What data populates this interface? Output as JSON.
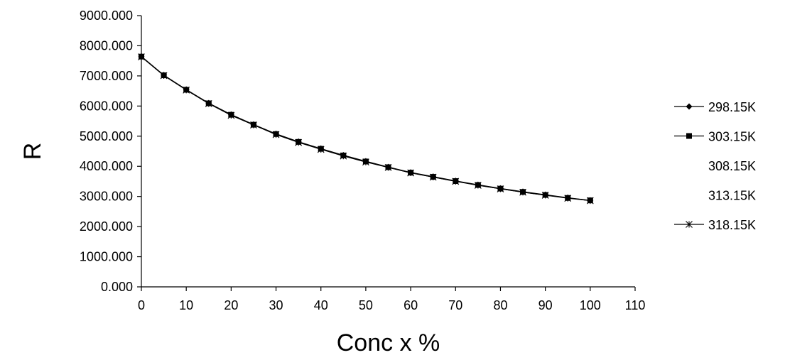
{
  "chart_data": {
    "type": "line",
    "title": "",
    "xlabel": "Conc x %",
    "ylabel": "R",
    "xlim": [
      0,
      110
    ],
    "ylim": [
      0,
      9000
    ],
    "x_ticks": [
      "0",
      "10",
      "20",
      "30",
      "40",
      "50",
      "60",
      "70",
      "80",
      "90",
      "100",
      "110"
    ],
    "y_ticks": [
      "0.000",
      "1000.000",
      "2000.000",
      "3000.000",
      "4000.000",
      "5000.000",
      "6000.000",
      "7000.000",
      "8000.000",
      "9000.000"
    ],
    "grid": false,
    "legend_position": "right",
    "x": [
      0,
      5,
      10,
      15,
      20,
      25,
      30,
      35,
      40,
      45,
      50,
      55,
      60,
      65,
      70,
      75,
      80,
      85,
      90,
      95,
      100
    ],
    "series": [
      {
        "name": "298.15K",
        "marker": "diamond",
        "values": [
          7650,
          7030,
          6550,
          6100,
          5720,
          5390,
          5080,
          4820,
          4590,
          4370,
          4170,
          3980,
          3800,
          3660,
          3520,
          3390,
          3270,
          3160,
          3060,
          2960,
          2870
        ]
      },
      {
        "name": "303.15K",
        "marker": "square",
        "values": [
          7640,
          7020,
          6540,
          6090,
          5710,
          5380,
          5070,
          4810,
          4580,
          4360,
          4160,
          3970,
          3790,
          3650,
          3510,
          3380,
          3260,
          3150,
          3050,
          2950,
          2870
        ]
      },
      {
        "name": "308.15K",
        "marker": "none",
        "values": [
          7640,
          7020,
          6540,
          6090,
          5700,
          5380,
          5060,
          4800,
          4570,
          4350,
          4150,
          3970,
          3790,
          3650,
          3510,
          3380,
          3260,
          3150,
          3050,
          2950,
          2860
        ]
      },
      {
        "name": "313.15K",
        "marker": "none",
        "values": [
          7630,
          7010,
          6530,
          6080,
          5700,
          5370,
          5060,
          4800,
          4570,
          4350,
          4150,
          3960,
          3780,
          3640,
          3500,
          3370,
          3250,
          3140,
          3040,
          2950,
          2860
        ]
      },
      {
        "name": "318.15K",
        "marker": "asterisk",
        "values": [
          7630,
          7010,
          6530,
          6080,
          5690,
          5370,
          5050,
          4790,
          4560,
          4340,
          4140,
          3960,
          3780,
          3640,
          3500,
          3370,
          3250,
          3140,
          3040,
          2940,
          2860
        ]
      }
    ]
  }
}
